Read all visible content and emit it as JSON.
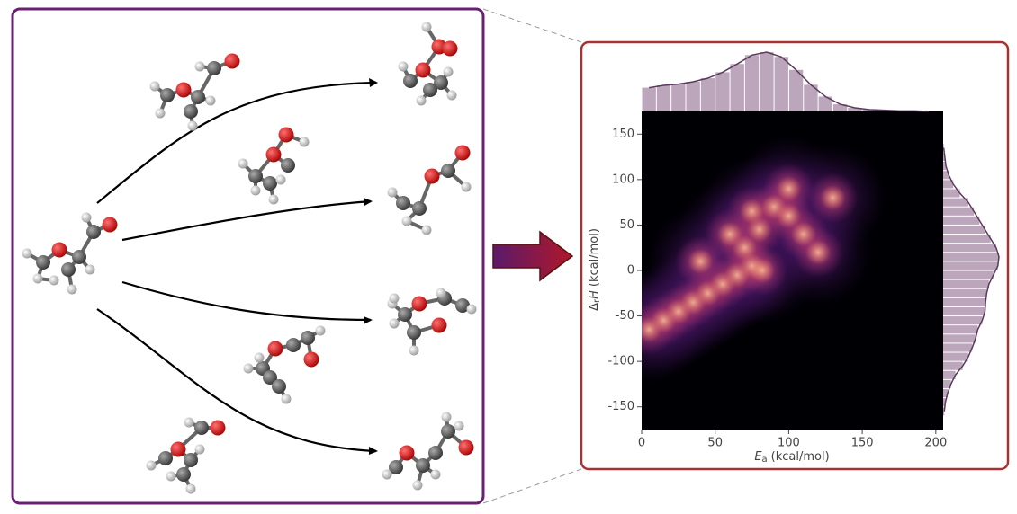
{
  "chart_data": {
    "type": "kde",
    "xlabel_symbol": "E",
    "xlabel_sub": "a",
    "xlabel_unit": "(kcal/mol)",
    "ylabel_prefix": "Δ",
    "ylabel_sub": "r",
    "ylabel_symbol": "H",
    "ylabel_unit": "(kcal/mol)",
    "xlim": [
      0,
      205
    ],
    "ylim": [
      -175,
      175
    ],
    "xticks": [
      0,
      50,
      100,
      150,
      200
    ],
    "yticks": [
      -150,
      -100,
      -50,
      0,
      50,
      100,
      150
    ],
    "x": [
      5,
      15,
      25,
      35,
      45,
      55,
      65,
      75,
      82,
      70,
      80,
      75,
      90,
      100,
      110,
      120,
      60,
      40,
      100,
      130
    ],
    "y": [
      -65,
      -55,
      -45,
      -35,
      -25,
      -15,
      -5,
      5,
      0,
      25,
      45,
      65,
      70,
      60,
      40,
      20,
      40,
      10,
      90,
      80
    ],
    "color": "#8e6b8e",
    "x_hist": {
      "bins": [
        0,
        10,
        20,
        30,
        40,
        50,
        60,
        70,
        80,
        90,
        100,
        110,
        120,
        130,
        140,
        150,
        160,
        170,
        180,
        190,
        200
      ],
      "counts": [
        40,
        44,
        46,
        50,
        56,
        66,
        80,
        95,
        100,
        92,
        70,
        45,
        25,
        12,
        6,
        3,
        2,
        1,
        1,
        0
      ]
    },
    "y_hist": {
      "bins": [
        -160,
        -150,
        -140,
        -130,
        -120,
        -110,
        -100,
        -90,
        -80,
        -70,
        -60,
        -50,
        -40,
        -30,
        -20,
        -10,
        0,
        10,
        20,
        30,
        40,
        50,
        60,
        70,
        80,
        90,
        100,
        110,
        120,
        130,
        140
      ],
      "counts": [
        2,
        4,
        8,
        14,
        22,
        35,
        45,
        52,
        58,
        62,
        70,
        75,
        76,
        78,
        82,
        90,
        98,
        100,
        95,
        85,
        75,
        65,
        55,
        45,
        30,
        18,
        10,
        5,
        3,
        1
      ]
    }
  }
}
